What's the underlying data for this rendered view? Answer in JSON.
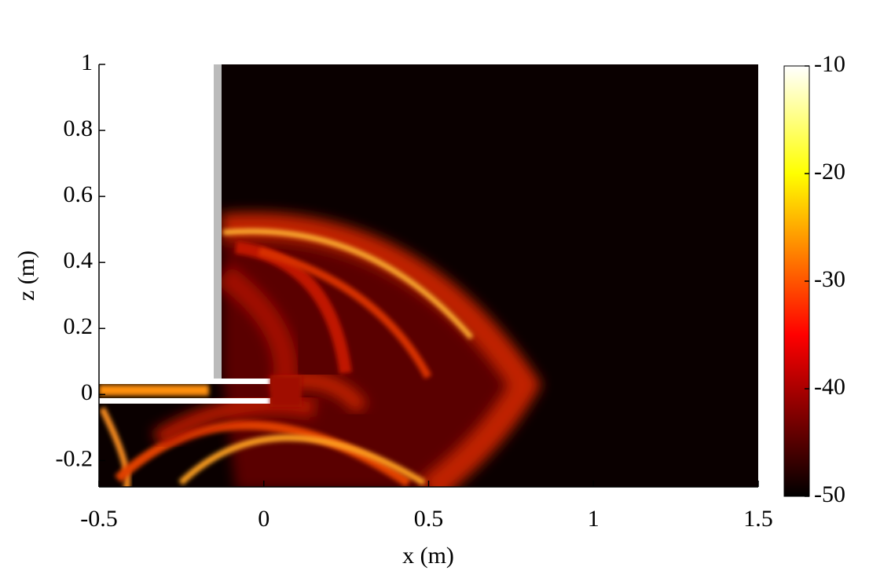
{
  "chart_data": {
    "type": "heatmap",
    "xlabel": "x (m)",
    "ylabel": "z (m)",
    "xlim": [
      -0.5,
      1.5
    ],
    "xticks": [
      -0.5,
      0,
      0.5,
      1,
      1.5
    ],
    "ylim": [
      -0.28,
      1
    ],
    "yticks": [
      -0.2,
      0,
      0.2,
      0.4,
      0.6,
      0.8,
      1
    ],
    "colormap": "hot",
    "clim": [
      -50,
      -10
    ],
    "cticks": [
      -50,
      -40,
      -30,
      -20,
      -10
    ]
  }
}
